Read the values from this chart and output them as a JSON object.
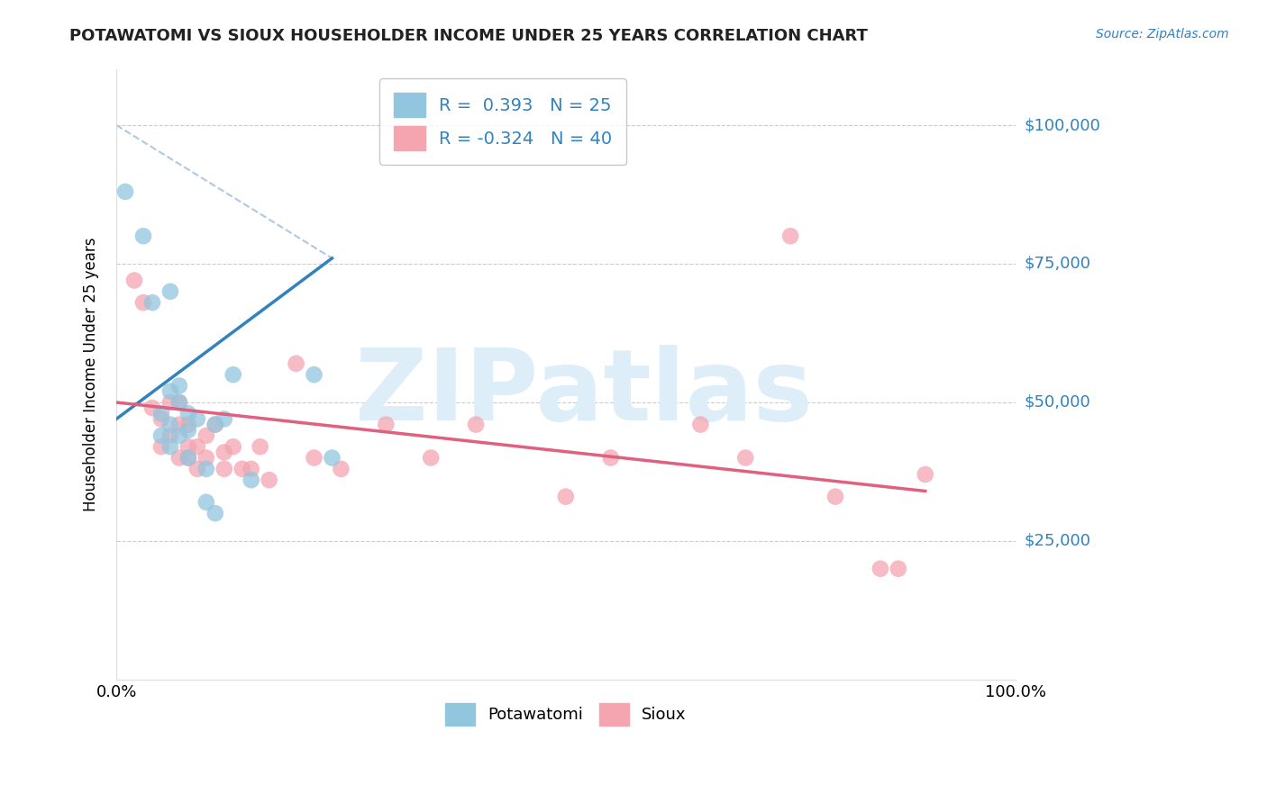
{
  "title": "POTAWATOMI VS SIOUX HOUSEHOLDER INCOME UNDER 25 YEARS CORRELATION CHART",
  "source_text": "Source: ZipAtlas.com",
  "ylabel": "Householder Income Under 25 years",
  "xlim": [
    0,
    100
  ],
  "ylim": [
    0,
    110000
  ],
  "yticks": [
    0,
    25000,
    50000,
    75000,
    100000
  ],
  "ytick_labels": [
    "",
    "$25,000",
    "$50,000",
    "$75,000",
    "$100,000"
  ],
  "legend_blue_r": "R =  0.393",
  "legend_blue_n": "N = 25",
  "legend_pink_r": "R = -0.324",
  "legend_pink_n": "N = 40",
  "blue_color": "#92c5de",
  "pink_color": "#f4a5b0",
  "blue_line_color": "#3182bd",
  "pink_line_color": "#e06080",
  "dashed_line_color": "#b0c8e0",
  "watermark_color": "#ddeef8",
  "background_color": "#ffffff",
  "grid_color": "#cccccc",
  "title_color": "#222222",
  "source_color": "#3182bd",
  "potawatomi_x": [
    1,
    3,
    4,
    5,
    5,
    6,
    6,
    6,
    6,
    7,
    7,
    7,
    8,
    8,
    8,
    9,
    10,
    10,
    11,
    11,
    12,
    13,
    15,
    22,
    24
  ],
  "potawatomi_y": [
    88000,
    80000,
    68000,
    48000,
    44000,
    70000,
    52000,
    46000,
    42000,
    53000,
    50000,
    44000,
    48000,
    45000,
    40000,
    47000,
    32000,
    38000,
    30000,
    46000,
    47000,
    55000,
    36000,
    55000,
    40000
  ],
  "sioux_x": [
    2,
    3,
    4,
    5,
    5,
    6,
    6,
    7,
    7,
    7,
    8,
    8,
    8,
    9,
    9,
    10,
    10,
    11,
    12,
    12,
    13,
    14,
    15,
    16,
    17,
    20,
    22,
    25,
    30,
    35,
    40,
    50,
    55,
    65,
    70,
    75,
    80,
    85,
    87,
    90
  ],
  "sioux_y": [
    72000,
    68000,
    49000,
    47000,
    42000,
    50000,
    44000,
    50000,
    46000,
    40000,
    46000,
    42000,
    40000,
    42000,
    38000,
    44000,
    40000,
    46000,
    41000,
    38000,
    42000,
    38000,
    38000,
    42000,
    36000,
    57000,
    40000,
    38000,
    46000,
    40000,
    46000,
    33000,
    40000,
    46000,
    40000,
    80000,
    33000,
    20000,
    20000,
    37000
  ],
  "blue_line_x0": 0,
  "blue_line_y0": 47000,
  "blue_line_x1": 24,
  "blue_line_y1": 76000,
  "pink_line_x0": 0,
  "pink_line_y0": 50000,
  "pink_line_x1": 90,
  "pink_line_y1": 34000,
  "dashed_x0": 0,
  "dashed_y0": 100000,
  "dashed_x1": 24,
  "dashed_y1": 76000
}
